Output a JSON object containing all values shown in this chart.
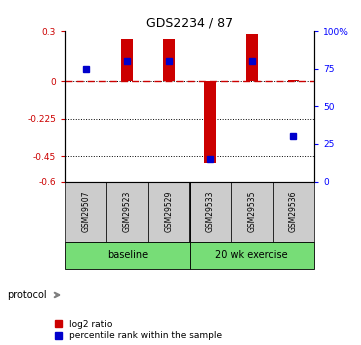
{
  "title": "GDS2234 / 87",
  "samples": [
    "GSM29507",
    "GSM29523",
    "GSM29529",
    "GSM29533",
    "GSM29535",
    "GSM29536"
  ],
  "log2_ratio": [
    0.0,
    0.25,
    0.25,
    -0.49,
    0.28,
    0.01
  ],
  "percentile_rank": [
    75,
    80,
    80,
    15,
    80,
    30
  ],
  "left_ylim": [
    -0.6,
    0.3
  ],
  "right_ylim": [
    0,
    100
  ],
  "left_yticks": [
    0.3,
    0,
    -0.225,
    -0.45,
    -0.6
  ],
  "left_ytick_labels": [
    "0.3",
    "0",
    "-0.225",
    "-0.45",
    "-0.6"
  ],
  "right_yticks": [
    100,
    75,
    50,
    25,
    0
  ],
  "right_ytick_labels": [
    "100%",
    "75",
    "50",
    "25",
    "0"
  ],
  "dotted_yticks": [
    -0.225,
    -0.45,
    -0.6
  ],
  "bar_color": "#cc0000",
  "dot_color": "#0000cc",
  "dashed_zero_color": "#cc0000",
  "background_color": "#ffffff",
  "tick_box_color": "#cccccc",
  "green_color": "#77dd77",
  "legend_items": [
    "log2 ratio",
    "percentile rank within the sample"
  ]
}
